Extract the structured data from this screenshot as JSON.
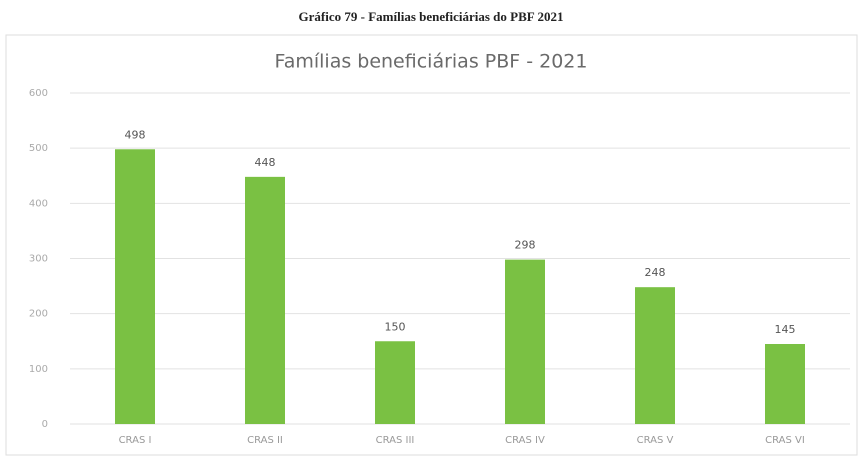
{
  "chart_data": {
    "type": "bar",
    "caption": "Gráfico 79 - Famílias beneficiárias do PBF 2021",
    "title": "Famílias beneficiárias PBF - 2021",
    "categories": [
      "CRAS I",
      "CRAS II",
      "CRAS III",
      "CRAS IV",
      "CRAS V",
      "CRAS VI"
    ],
    "values": [
      498,
      448,
      150,
      298,
      248,
      145
    ],
    "color": "#7ac143",
    "ylim": [
      0,
      600
    ],
    "yticks": [
      0,
      100,
      200,
      300,
      400,
      500,
      600
    ],
    "grid": true
  }
}
